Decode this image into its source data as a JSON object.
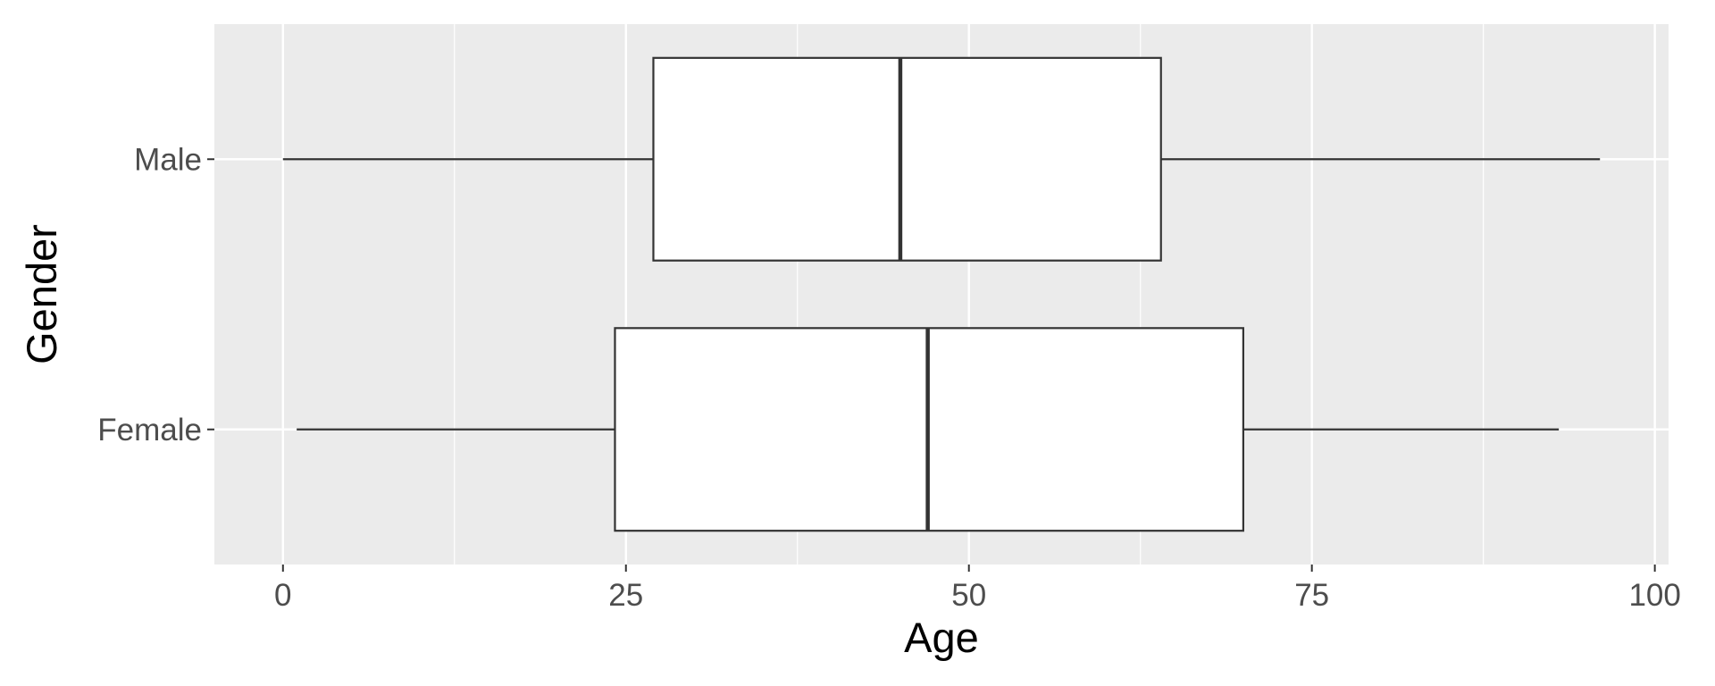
{
  "chart_data": {
    "type": "boxplot",
    "orientation": "horizontal",
    "xlabel": "Age",
    "ylabel": "Gender",
    "xlim": [
      -5,
      101
    ],
    "xticks": [
      0,
      25,
      50,
      75,
      100
    ],
    "grid": true,
    "categories": [
      "Male",
      "Female"
    ],
    "boxes": [
      {
        "category": "Male",
        "min": 0,
        "q1": 27,
        "median": 45,
        "q3": 64,
        "max": 96
      },
      {
        "category": "Female",
        "min": 1,
        "q1": 24.2,
        "median": 47,
        "q3": 70,
        "max": 93
      }
    ],
    "colors": {
      "panel": "#ebebeb",
      "grid": "#ffffff",
      "box_fill": "#ffffff",
      "box_stroke": "#333333",
      "tick_label": "#4d4d4d",
      "axis_title": "#000000"
    }
  }
}
